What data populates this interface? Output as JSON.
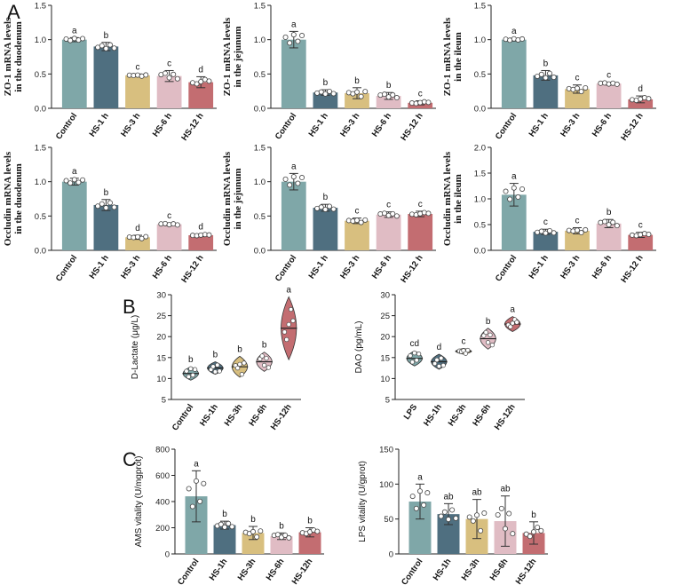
{
  "panel_letters": {
    "a": "A",
    "b": "B",
    "c": "C"
  },
  "colors": [
    "#7fa7a8",
    "#4f6f80",
    "#d8bf7f",
    "#e0bcc4",
    "#c36d71"
  ],
  "chart_data": [
    {
      "id": "A1",
      "type": "bar",
      "plot": "bar",
      "ylabel": [
        "ZO-1 mRNA levels",
        "in the duodenum"
      ],
      "ylabel_style": "serif",
      "ylim": [
        0,
        1.5
      ],
      "yticks": [
        0.0,
        0.5,
        1.0,
        1.5
      ],
      "categories": [
        "Control",
        "HS-1 h",
        "HS-3 h",
        "HS-6 h",
        "HS-12 h"
      ],
      "values": [
        1.0,
        0.9,
        0.48,
        0.47,
        0.38
      ],
      "errors": [
        0.03,
        0.06,
        0.02,
        0.08,
        0.08
      ],
      "letters": [
        "a",
        "b",
        "c",
        "c",
        "d"
      ]
    },
    {
      "id": "A2",
      "type": "bar",
      "plot": "bar",
      "ylabel": [
        "ZO-1 mRNA levels",
        "in the jejunum"
      ],
      "ylabel_style": "serif",
      "ylim": [
        0,
        1.5
      ],
      "yticks": [
        0.0,
        0.5,
        1.0,
        1.5
      ],
      "categories": [
        "Control",
        "HS-1 h",
        "HS-3 h",
        "HS-6 h",
        "HS-12 h"
      ],
      "values": [
        1.0,
        0.23,
        0.22,
        0.18,
        0.08
      ],
      "errors": [
        0.12,
        0.04,
        0.08,
        0.05,
        0.03
      ],
      "letters": [
        "a",
        "b",
        "b",
        "b",
        "c"
      ]
    },
    {
      "id": "A3",
      "type": "bar",
      "plot": "bar",
      "ylabel": [
        "ZO-1 mRNA levels",
        "in the ileum"
      ],
      "ylabel_style": "serif",
      "ylim": [
        0,
        1.5
      ],
      "yticks": [
        0.0,
        0.5,
        1.0,
        1.5
      ],
      "categories": [
        "Control",
        "HS-1 h",
        "HS-3 h",
        "HS-6 h",
        "HS-12 h"
      ],
      "values": [
        1.0,
        0.48,
        0.28,
        0.36,
        0.13
      ],
      "errors": [
        0.02,
        0.07,
        0.06,
        0.02,
        0.05
      ],
      "letters": [
        "a",
        "b",
        "c",
        "c",
        "d"
      ]
    },
    {
      "id": "A4",
      "type": "bar",
      "plot": "bar",
      "ylabel": [
        "Occludin mRNA levels",
        "in the duodenum"
      ],
      "ylabel_style": "serif",
      "ylim": [
        0,
        1.5
      ],
      "yticks": [
        0.0,
        0.5,
        1.0,
        1.5
      ],
      "categories": [
        "Control",
        "HS-1 h",
        "HS-3 h",
        "HS-6 h",
        "HS-12 h"
      ],
      "values": [
        1.0,
        0.66,
        0.19,
        0.38,
        0.22
      ],
      "errors": [
        0.05,
        0.08,
        0.03,
        0.02,
        0.02
      ],
      "letters": [
        "a",
        "b",
        "d",
        "c",
        "d"
      ]
    },
    {
      "id": "A5",
      "type": "bar",
      "plot": "bar",
      "ylabel": [
        "Occludin mRNA levels",
        "in the jejunum"
      ],
      "ylabel_style": "serif",
      "ylim": [
        0,
        1.5
      ],
      "yticks": [
        0.0,
        0.5,
        1.0,
        1.5
      ],
      "categories": [
        "Control",
        "HS-1 h",
        "HS-3 h",
        "HS-6 h",
        "HS-12 h"
      ],
      "values": [
        1.0,
        0.62,
        0.43,
        0.52,
        0.53
      ],
      "errors": [
        0.12,
        0.05,
        0.04,
        0.04,
        0.04
      ],
      "letters": [
        "a",
        "b",
        "c",
        "c",
        "c"
      ]
    },
    {
      "id": "A6",
      "type": "bar",
      "plot": "bar",
      "ylabel": [
        "Occludin mRNA levels",
        "in the ileum"
      ],
      "ylabel_style": "serif",
      "ylim": [
        0,
        2.0
      ],
      "yticks": [
        0.0,
        0.5,
        1.0,
        1.5,
        2.0
      ],
      "categories": [
        "Control",
        "HS-1 h",
        "HS-3 h",
        "HS-6 h",
        "HS-12 h"
      ],
      "values": [
        1.08,
        0.36,
        0.38,
        0.52,
        0.3
      ],
      "errors": [
        0.22,
        0.05,
        0.06,
        0.08,
        0.05
      ],
      "letters": [
        "a",
        "c",
        "c",
        "b",
        "c"
      ]
    },
    {
      "id": "B1",
      "type": "bar",
      "plot": "violin",
      "ylabel": [
        "D-Lactate (μg/L)"
      ],
      "ylabel_style": "sans",
      "ylim": [
        5,
        30
      ],
      "yticks": [
        5,
        10,
        15,
        20,
        25,
        30
      ],
      "categories": [
        "Control",
        "HS-1h",
        "HS-3h",
        "HS-6h",
        "HS-12h"
      ],
      "values": [
        11.2,
        12.5,
        12.8,
        14.0,
        22.0
      ],
      "spread": [
        1.6,
        1.5,
        2.5,
        2.3,
        7.5
      ],
      "letters": [
        "b",
        "b",
        "b",
        "b",
        "a"
      ]
    },
    {
      "id": "B2",
      "type": "bar",
      "plot": "violin",
      "ylabel": [
        "DAO (pg/mL)"
      ],
      "ylabel_style": "sans",
      "ylim": [
        5,
        30
      ],
      "yticks": [
        5,
        10,
        15,
        20,
        25,
        30
      ],
      "categories": [
        "LPS",
        "HS-1h",
        "HS-3h",
        "HS-6h",
        "HS-12h"
      ],
      "values": [
        14.8,
        14.0,
        16.5,
        19.5,
        23.0
      ],
      "spread": [
        1.8,
        1.8,
        0.7,
        2.5,
        1.8
      ],
      "letters": [
        "cd",
        "d",
        "c",
        "b",
        "a"
      ]
    },
    {
      "id": "C1",
      "type": "bar",
      "plot": "bar",
      "ylabel": [
        "AMS vitality (U/mgprot)"
      ],
      "ylabel_style": "sans",
      "ylim": [
        0,
        800
      ],
      "yticks": [
        0,
        200,
        400,
        600,
        800
      ],
      "categories": [
        "Control",
        "HS-1h",
        "HS-3h",
        "HS-6h",
        "HS-12h"
      ],
      "values": [
        440,
        220,
        160,
        135,
        165
      ],
      "errors": [
        195,
        30,
        50,
        25,
        35
      ],
      "letters": [
        "a",
        "b",
        "b",
        "b",
        "b"
      ]
    },
    {
      "id": "C2",
      "type": "bar",
      "plot": "bar",
      "ylabel": [
        "LPS vitality (U/gprot)"
      ],
      "ylabel_style": "sans",
      "ylim": [
        0,
        150
      ],
      "yticks": [
        0,
        50,
        100,
        150
      ],
      "categories": [
        "Control",
        "HS-1h",
        "HS-3h",
        "HS-6h",
        "HS-12h"
      ],
      "values": [
        75,
        57,
        50,
        47,
        30
      ],
      "errors": [
        25,
        15,
        28,
        36,
        16
      ],
      "letters": [
        "a",
        "ab",
        "ab",
        "ab",
        "b"
      ]
    }
  ]
}
